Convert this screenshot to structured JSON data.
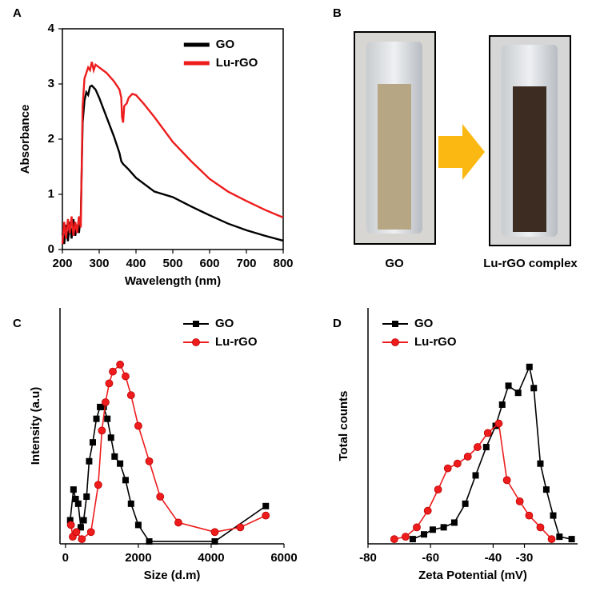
{
  "chart_data": [
    {
      "panel": "A",
      "type": "line",
      "xlabel": "Wavelength (nm)",
      "ylabel": "Absorbance",
      "xlim": [
        200,
        800
      ],
      "ylim": [
        0,
        4
      ],
      "xticks": [
        200,
        300,
        400,
        500,
        600,
        700,
        800
      ],
      "yticks": [
        0,
        1,
        2,
        3,
        4
      ],
      "legend": "upper right",
      "series": [
        {
          "name": "GO",
          "color": "#000000",
          "x": [
            200,
            205,
            210,
            215,
            220,
            225,
            230,
            235,
            240,
            245,
            250,
            255,
            260,
            265,
            270,
            275,
            280,
            290,
            300,
            320,
            340,
            355,
            360,
            365,
            380,
            400,
            450,
            500,
            550,
            600,
            650,
            700,
            750,
            800
          ],
          "values": [
            0.3,
            0.1,
            0.45,
            0.15,
            0.5,
            0.2,
            0.55,
            0.25,
            0.45,
            0.3,
            0.6,
            2.3,
            2.7,
            2.85,
            2.8,
            2.95,
            2.97,
            2.9,
            2.75,
            2.4,
            2.05,
            1.75,
            1.6,
            1.55,
            1.45,
            1.3,
            1.05,
            0.95,
            0.78,
            0.62,
            0.47,
            0.35,
            0.25,
            0.16
          ]
        },
        {
          "name": "Lu-rGO",
          "color": "#ee1c1c",
          "x": [
            200,
            205,
            210,
            215,
            220,
            225,
            230,
            235,
            240,
            245,
            250,
            255,
            260,
            265,
            270,
            275,
            280,
            285,
            290,
            300,
            310,
            320,
            340,
            355,
            360,
            362,
            365,
            368,
            375,
            380,
            390,
            400,
            420,
            450,
            500,
            550,
            600,
            650,
            700,
            750,
            800
          ],
          "values": [
            0.1,
            0.5,
            0.2,
            0.55,
            0.3,
            0.6,
            0.25,
            0.5,
            0.3,
            0.6,
            0.4,
            2.6,
            3.1,
            3.2,
            3.3,
            3.25,
            3.4,
            3.25,
            3.35,
            3.3,
            3.25,
            3.2,
            3.05,
            2.9,
            2.75,
            2.4,
            2.3,
            2.6,
            2.65,
            2.75,
            2.82,
            2.8,
            2.65,
            2.4,
            1.95,
            1.6,
            1.28,
            1.05,
            0.88,
            0.72,
            0.58
          ]
        }
      ]
    },
    {
      "panel": "C",
      "type": "line",
      "xlabel": "Size (d.m)",
      "ylabel": "Intensity (a.u)",
      "xlim": [
        -150,
        6000
      ],
      "ylim": [
        0,
        100
      ],
      "xticks": [
        0,
        2000,
        4000,
        6000
      ],
      "legend": "upper right",
      "series": [
        {
          "name": "GO",
          "color": "#000000",
          "marker": "square",
          "x": [
            130,
            220,
            280,
            350,
            420,
            500,
            580,
            650,
            750,
            850,
            950,
            1050,
            1150,
            1250,
            1350,
            1500,
            1650,
            1800,
            2000,
            2300,
            4100,
            5500
          ],
          "values": [
            10,
            23,
            19,
            17,
            7,
            10,
            20,
            35,
            43,
            53,
            58,
            58,
            53,
            45,
            37,
            34,
            27,
            17,
            8,
            1,
            1,
            16
          ]
        },
        {
          "name": "Lu-rGO",
          "color": "#ee1c1c",
          "marker": "circle",
          "x": [
            150,
            200,
            300,
            450,
            700,
            900,
            1000,
            1100,
            1200,
            1300,
            1500,
            1650,
            1800,
            2000,
            2300,
            2600,
            3100,
            4100,
            4800,
            5500
          ],
          "values": [
            8,
            3,
            5,
            2,
            5,
            25,
            48,
            60,
            68,
            73,
            76,
            71,
            63,
            50,
            35,
            20,
            9,
            5,
            7,
            12
          ]
        }
      ]
    },
    {
      "panel": "D",
      "type": "line",
      "xlabel": "Zeta Potential (mV)",
      "ylabel": "Total counts",
      "xlim": [
        -80,
        -13
      ],
      "ylim": [
        0,
        100
      ],
      "xticks": [
        -80,
        -60,
        -40,
        -30
      ],
      "legend": "upper left",
      "series": [
        {
          "name": "GO",
          "color": "#000000",
          "marker": "square",
          "x": [
            -65.7,
            -62.1,
            -59.3,
            -55.8,
            -52.4,
            -48.9,
            -45.6,
            -42.2,
            -39.2,
            -37.1,
            -35.1,
            -32.0,
            -28.4,
            -27.0,
            -24.9,
            -23.0,
            -20.8,
            -18.8,
            -14.9
          ],
          "values": [
            2,
            4,
            6,
            7,
            9,
            17,
            29,
            41,
            50,
            59,
            67,
            64,
            75,
            66,
            34,
            23,
            12,
            3,
            2
          ]
        },
        {
          "name": "Lu-rGO",
          "color": "#ee1c1c",
          "marker": "circle",
          "x": [
            -71.6,
            -68,
            -64.4,
            -60.9,
            -57.6,
            -54.5,
            -51.4,
            -48.1,
            -45,
            -41.7,
            -38.2,
            -35.6,
            -31.5,
            -28.5,
            -24.9,
            -21.3
          ],
          "values": [
            2,
            3,
            7,
            14,
            23,
            32,
            34,
            37,
            41,
            47,
            51,
            27,
            18,
            12,
            7,
            2
          ]
        }
      ]
    }
  ],
  "photos": {
    "panel": "B",
    "labels": [
      "GO",
      "Lu-rGO complex"
    ]
  }
}
